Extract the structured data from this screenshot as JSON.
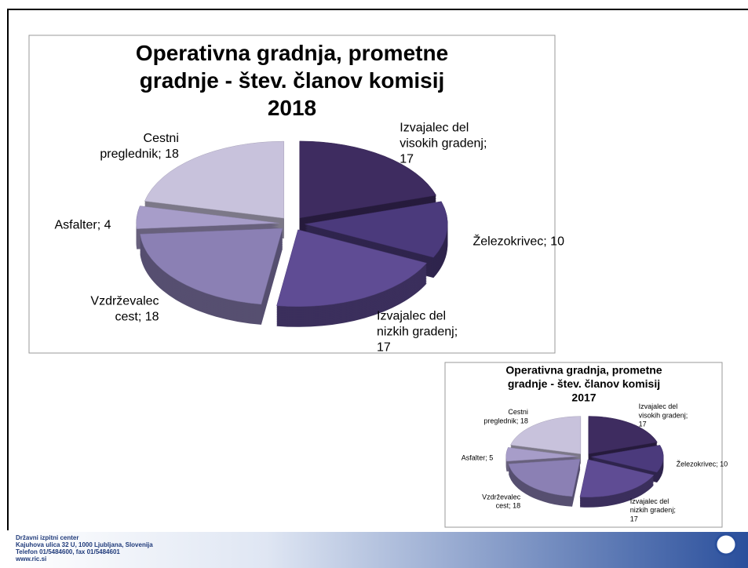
{
  "chart_data": [
    {
      "type": "pie",
      "title": "Operativna gradnja, prometne gradnje - štev. članov komisij 2018",
      "values": [
        17,
        10,
        17,
        18,
        4,
        18
      ],
      "value_labels": [
        "Izvajalec del visokih gradenj; 17",
        "Železokrivec; 10",
        "Izvajalec del nizkih gradenj; 17",
        "Vzdrževalec cest; 18",
        "Asfalter; 4",
        "Cestni preglednik; 18"
      ],
      "colors": [
        "#3e2c60",
        "#4b3a7c",
        "#5f4c94",
        "#8b80b4",
        "#a79dc9",
        "#c8c2dc"
      ]
    },
    {
      "type": "pie",
      "title": "Operativna gradnja, prometne gradnje - štev. članov komisij 2017",
      "values": [
        17,
        10,
        17,
        18,
        5,
        18
      ],
      "value_labels": [
        "Izvajalec del visokih gradenj; 17",
        "Železokrivec; 10",
        "Izvajalec del nizkih gradenj; 17",
        "Vzdrževalec cest; 18",
        "Asfalter; 5",
        "Cestni preglednik; 18"
      ],
      "colors": [
        "#3e2c60",
        "#4b3a7c",
        "#5f4c94",
        "#8b80b4",
        "#a79dc9",
        "#c8c2dc"
      ]
    }
  ],
  "footer": {
    "lines": [
      "Državni izpitni center",
      "Kajuhova ulica 32 U, 1000 Ljubljana, Slovenija",
      "Telefon 01/5484600, fax 01/5484601",
      "www.ric.si"
    ]
  }
}
